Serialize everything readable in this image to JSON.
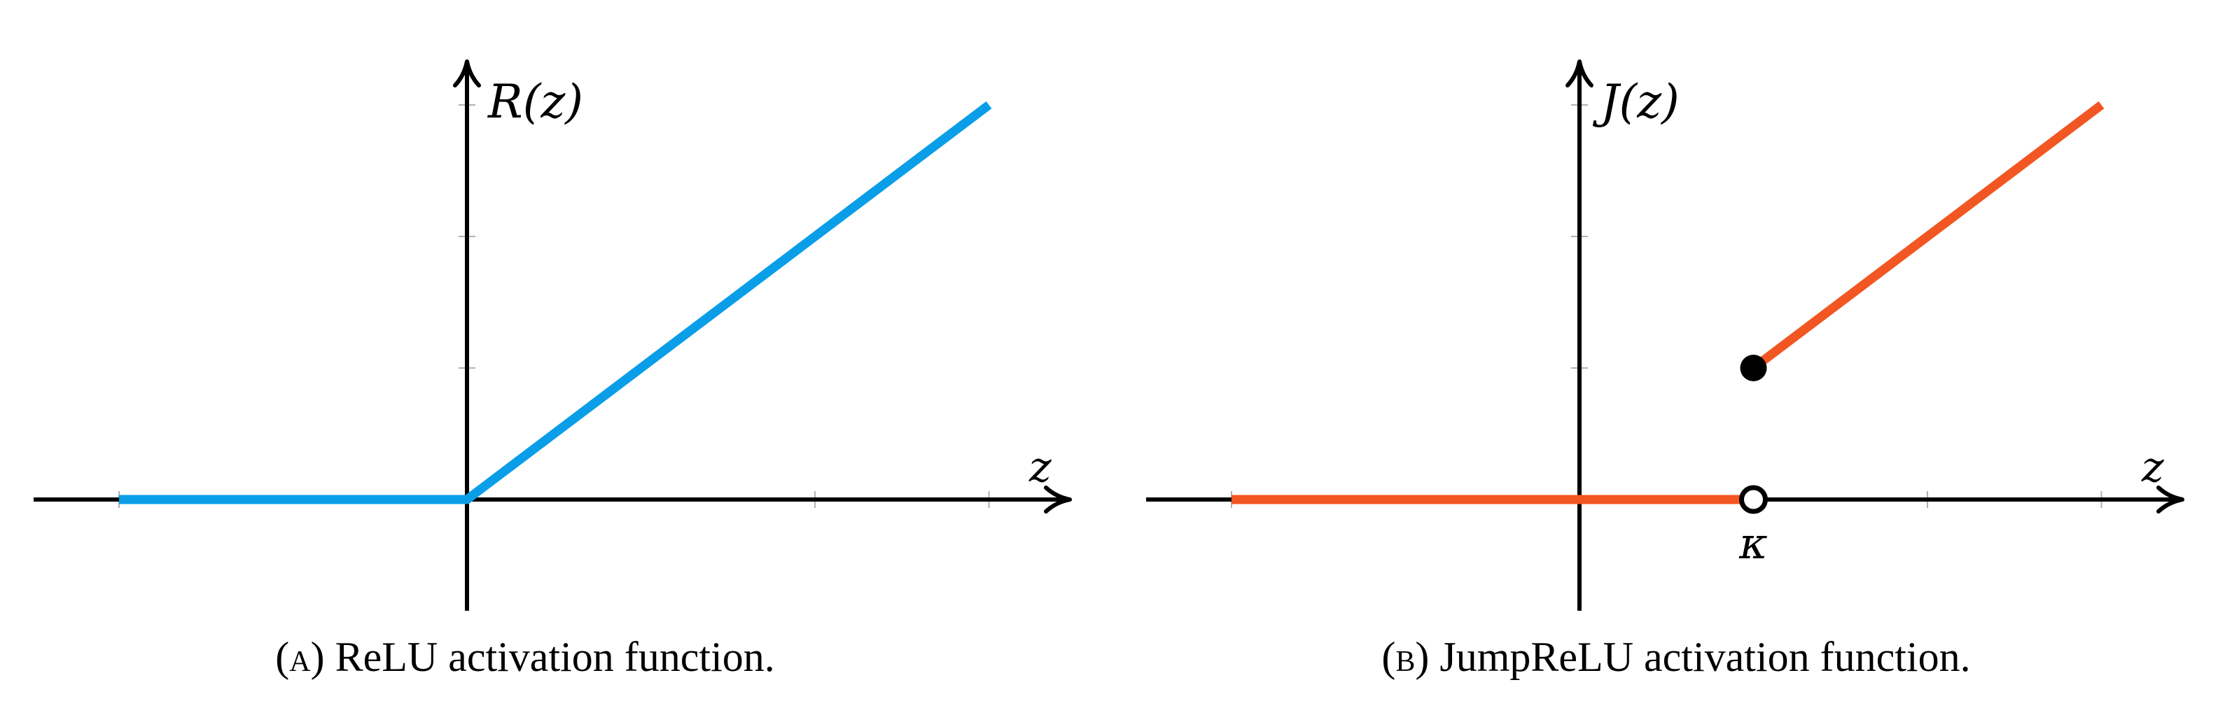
{
  "chart_data": [
    {
      "type": "line",
      "caption_tag": "a",
      "caption_text": "ReLU activation function.",
      "xlabel": "z",
      "ylabel": "R(z)",
      "xlim": [
        -3,
        3
      ],
      "ylim": [
        0,
        3
      ],
      "x_ticks": [
        -2,
        0,
        2,
        3
      ],
      "y_ticks": [
        1,
        2,
        3
      ],
      "color": "#0a9ee8",
      "series": [
        {
          "x": [
            -2,
            0,
            3
          ],
          "y": [
            0,
            0,
            3
          ]
        }
      ],
      "points": []
    },
    {
      "type": "line",
      "caption_tag": "b",
      "caption_text": "JumpReLU activation function.",
      "xlabel": "z",
      "ylabel": "J(z)",
      "xlim": [
        -3,
        3
      ],
      "ylim": [
        0,
        3
      ],
      "x_ticks": [
        -2,
        0,
        2,
        3
      ],
      "y_ticks": [
        1,
        2,
        3
      ],
      "color": "#f25622",
      "annotation": "κ",
      "series": [
        {
          "x": [
            -2,
            1
          ],
          "y": [
            0,
            0
          ]
        },
        {
          "x": [
            1,
            3
          ],
          "y": [
            1,
            3
          ]
        }
      ],
      "points": [
        {
          "x": 1,
          "y": 1,
          "style": "filled"
        },
        {
          "x": 1,
          "y": 0,
          "style": "open"
        }
      ]
    }
  ]
}
